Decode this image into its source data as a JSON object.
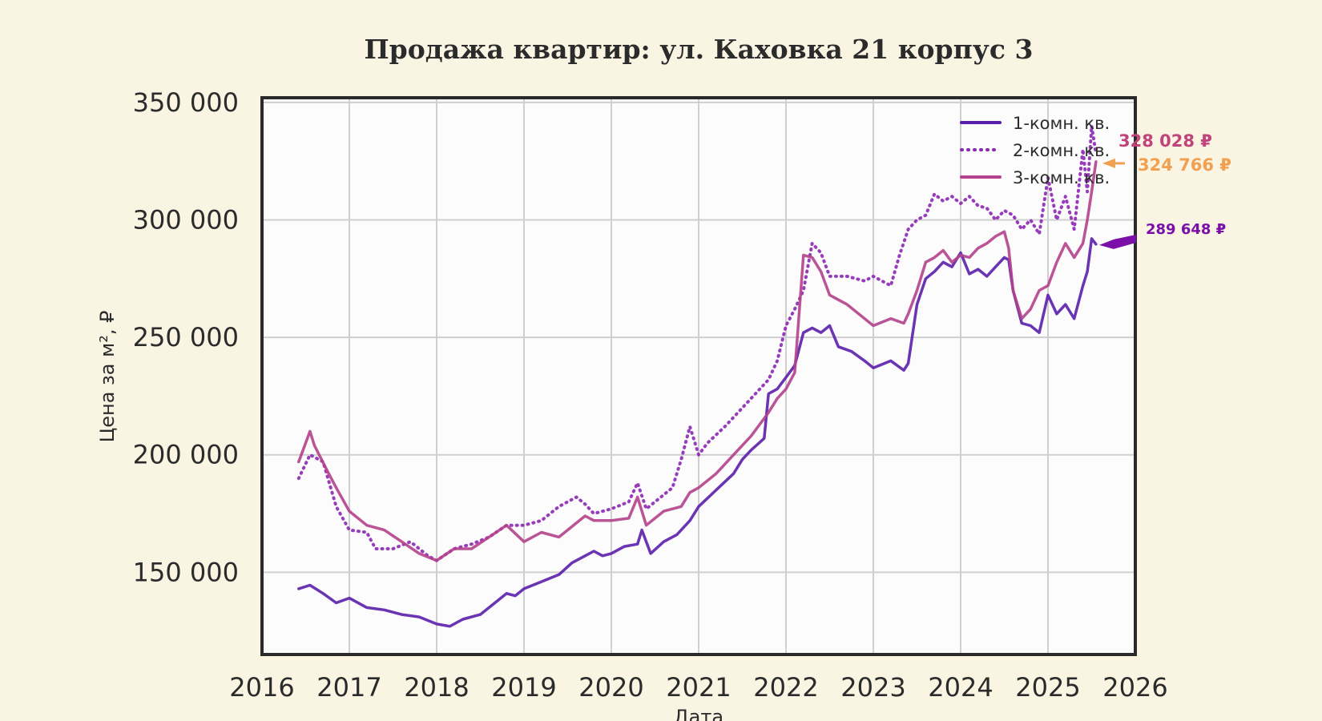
{
  "chart_data": {
    "type": "line",
    "title": "Продажа квартир: ул. Каховка 21 корпус 3",
    "xlabel": "Дата",
    "ylabel": "Цена за м², ₽",
    "xlim": [
      2016,
      2026
    ],
    "ylim": [
      115000,
      352000
    ],
    "x_ticks": [
      "2016",
      "2017",
      "2018",
      "2019",
      "2020",
      "2021",
      "2022",
      "2023",
      "2024",
      "2025",
      "2026"
    ],
    "y_ticks": [
      {
        "value": 150000,
        "label": "150 000"
      },
      {
        "value": 200000,
        "label": "200 000"
      },
      {
        "value": 250000,
        "label": "250 000"
      },
      {
        "value": 300000,
        "label": "300 000"
      },
      {
        "value": 350000,
        "label": "350 000"
      }
    ],
    "grid": true,
    "legend_position": "top-right",
    "series": [
      {
        "name": "1-комн. кв.",
        "color": "#5a1eaa",
        "style": "solid",
        "x": [
          2016.42,
          2016.55,
          2016.7,
          2016.85,
          2017.0,
          2017.2,
          2017.4,
          2017.6,
          2017.8,
          2018.0,
          2018.15,
          2018.3,
          2018.5,
          2018.7,
          2018.8,
          2018.9,
          2019.0,
          2019.2,
          2019.4,
          2019.55,
          2019.7,
          2019.8,
          2019.9,
          2020.0,
          2020.15,
          2020.3,
          2020.35,
          2020.45,
          2020.6,
          2020.75,
          2020.9,
          2021.0,
          2021.2,
          2021.4,
          2021.5,
          2021.6,
          2021.75,
          2021.8,
          2021.9,
          2022.0,
          2022.1,
          2022.2,
          2022.3,
          2022.4,
          2022.5,
          2022.6,
          2022.75,
          2022.9,
          2023.0,
          2023.2,
          2023.35,
          2023.4,
          2023.5,
          2023.6,
          2023.7,
          2023.8,
          2023.9,
          2024.0,
          2024.1,
          2024.2,
          2024.3,
          2024.4,
          2024.5,
          2024.55,
          2024.6,
          2024.7,
          2024.8,
          2024.9,
          2025.0,
          2025.1,
          2025.2,
          2025.3,
          2025.4,
          2025.45,
          2025.5,
          2025.55
        ],
        "values": [
          143000,
          144500,
          141000,
          137000,
          139000,
          135000,
          134000,
          132000,
          131000,
          128000,
          127000,
          130000,
          132000,
          138000,
          141000,
          140000,
          143000,
          146000,
          149000,
          154000,
          157000,
          159000,
          157000,
          158000,
          161000,
          162000,
          168000,
          158000,
          163000,
          166000,
          172000,
          178000,
          185000,
          192000,
          198000,
          202000,
          207000,
          226000,
          228000,
          233000,
          238000,
          252000,
          254000,
          252000,
          255000,
          246000,
          244000,
          240000,
          237000,
          240000,
          236000,
          239000,
          264000,
          275000,
          278000,
          282000,
          280000,
          286000,
          277000,
          279000,
          276000,
          280000,
          284000,
          283000,
          270000,
          256000,
          255000,
          252000,
          268000,
          260000,
          264000,
          258000,
          272000,
          278000,
          292000,
          289648
        ]
      },
      {
        "name": "2-комн. кв.",
        "color": "#8c28b4",
        "style": "dotted",
        "x": [
          2016.42,
          2016.55,
          2016.7,
          2016.85,
          2017.0,
          2017.2,
          2017.3,
          2017.5,
          2017.7,
          2017.9,
          2018.0,
          2018.2,
          2018.4,
          2018.6,
          2018.8,
          2019.0,
          2019.2,
          2019.4,
          2019.6,
          2019.7,
          2019.8,
          2020.0,
          2020.2,
          2020.3,
          2020.4,
          2020.5,
          2020.7,
          2020.8,
          2020.9,
          2021.0,
          2021.1,
          2021.3,
          2021.5,
          2021.7,
          2021.8,
          2021.9,
          2022.0,
          2022.1,
          2022.2,
          2022.3,
          2022.4,
          2022.5,
          2022.7,
          2022.9,
          2023.0,
          2023.2,
          2023.3,
          2023.4,
          2023.5,
          2023.6,
          2023.7,
          2023.8,
          2023.9,
          2024.0,
          2024.1,
          2024.2,
          2024.3,
          2024.4,
          2024.5,
          2024.6,
          2024.7,
          2024.8,
          2024.9,
          2025.0,
          2025.1,
          2025.2,
          2025.3,
          2025.4,
          2025.45,
          2025.5,
          2025.55
        ],
        "values": [
          190000,
          200000,
          197000,
          178000,
          168000,
          167000,
          160000,
          160000,
          163000,
          157000,
          155000,
          160000,
          162000,
          165000,
          170000,
          170000,
          172000,
          178000,
          182000,
          179000,
          175000,
          177000,
          180000,
          188000,
          177000,
          180000,
          186000,
          198000,
          212000,
          200000,
          205000,
          212000,
          220000,
          228000,
          232000,
          240000,
          255000,
          262000,
          270000,
          290000,
          286000,
          276000,
          276000,
          274000,
          276000,
          272000,
          285000,
          296000,
          300000,
          302000,
          311000,
          308000,
          310000,
          307000,
          310000,
          306000,
          305000,
          300000,
          304000,
          302000,
          296000,
          300000,
          294000,
          318000,
          300000,
          310000,
          296000,
          330000,
          312000,
          340000,
          328028
        ]
      },
      {
        "name": "3-комн. кв.",
        "color": "#b4418c",
        "style": "solid",
        "x": [
          2016.42,
          2016.55,
          2016.6,
          2016.75,
          2016.85,
          2017.0,
          2017.2,
          2017.4,
          2017.6,
          2017.8,
          2018.0,
          2018.2,
          2018.4,
          2018.6,
          2018.8,
          2019.0,
          2019.2,
          2019.4,
          2019.5,
          2019.7,
          2019.8,
          2020.0,
          2020.2,
          2020.3,
          2020.4,
          2020.6,
          2020.8,
          2020.9,
          2021.0,
          2021.2,
          2021.4,
          2021.6,
          2021.8,
          2021.9,
          2022.0,
          2022.1,
          2022.2,
          2022.3,
          2022.4,
          2022.5,
          2022.7,
          2022.9,
          2023.0,
          2023.2,
          2023.35,
          2023.4,
          2023.5,
          2023.6,
          2023.7,
          2023.8,
          2023.9,
          2024.0,
          2024.1,
          2024.2,
          2024.3,
          2024.4,
          2024.5,
          2024.55,
          2024.6,
          2024.7,
          2024.8,
          2024.9,
          2025.0,
          2025.1,
          2025.2,
          2025.3,
          2025.4,
          2025.45,
          2025.5,
          2025.55
        ],
        "values": [
          197000,
          210000,
          204000,
          193000,
          186000,
          176000,
          170000,
          168000,
          163000,
          158000,
          155000,
          160000,
          160000,
          165000,
          170000,
          163000,
          167000,
          165000,
          168000,
          174000,
          172000,
          172000,
          173000,
          182000,
          170000,
          176000,
          178000,
          184000,
          186000,
          192000,
          200000,
          208000,
          218000,
          224000,
          228000,
          235000,
          285000,
          284000,
          278000,
          268000,
          264000,
          258000,
          255000,
          258000,
          256000,
          260000,
          270000,
          282000,
          284000,
          287000,
          282000,
          285000,
          284000,
          288000,
          290000,
          293000,
          295000,
          288000,
          270000,
          258000,
          262000,
          270000,
          272000,
          282000,
          290000,
          284000,
          290000,
          300000,
          312000,
          324766
        ]
      }
    ],
    "annotations": [
      {
        "text": "328 028 ₽",
        "series": "2-комн. кв.",
        "value": 328028,
        "color": "#c0447a",
        "arrow": false
      },
      {
        "text": "324 766 ₽",
        "series": "3-комн. кв.",
        "value": 324766,
        "color": "#f0a050",
        "arrow": true
      },
      {
        "text": "289 648 ₽",
        "series": "1-комн. кв.",
        "value": 289648,
        "color": "#7a10a8",
        "arrow": true
      }
    ]
  }
}
